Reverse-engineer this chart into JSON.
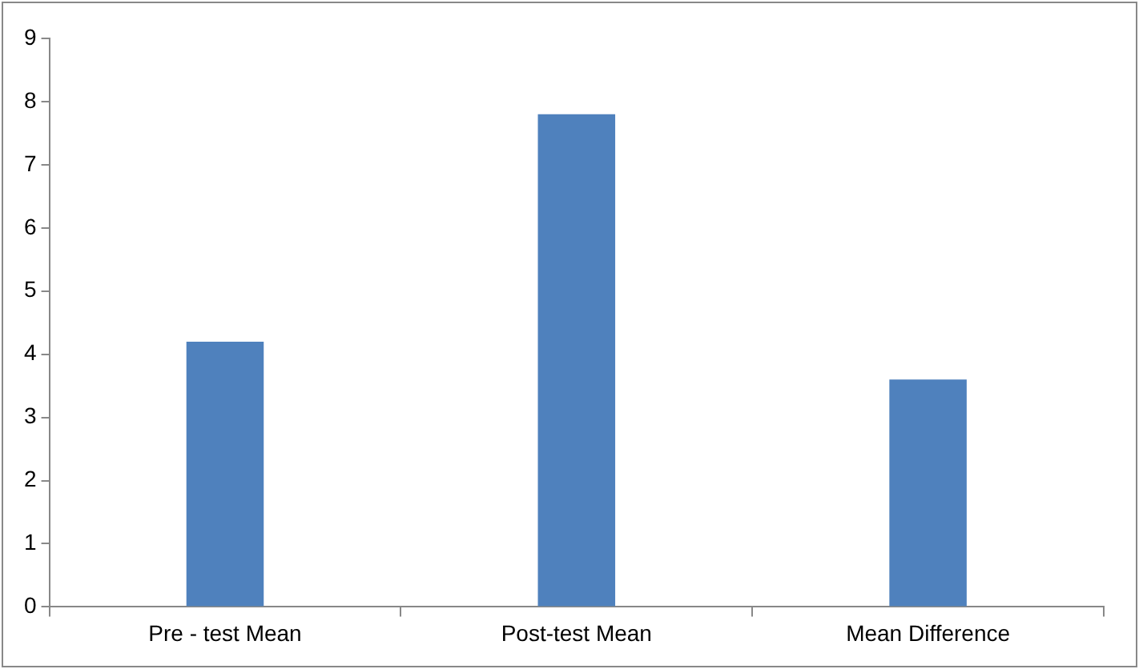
{
  "chart_data": {
    "type": "bar",
    "categories": [
      "Pre - test Mean",
      "Post-test Mean",
      "Mean Difference"
    ],
    "values": [
      4.2,
      7.8,
      3.6
    ],
    "color": "#4f81bd",
    "ylim": [
      0,
      9
    ],
    "yticks": [
      0,
      1,
      2,
      3,
      4,
      5,
      6,
      7,
      8,
      9
    ]
  }
}
